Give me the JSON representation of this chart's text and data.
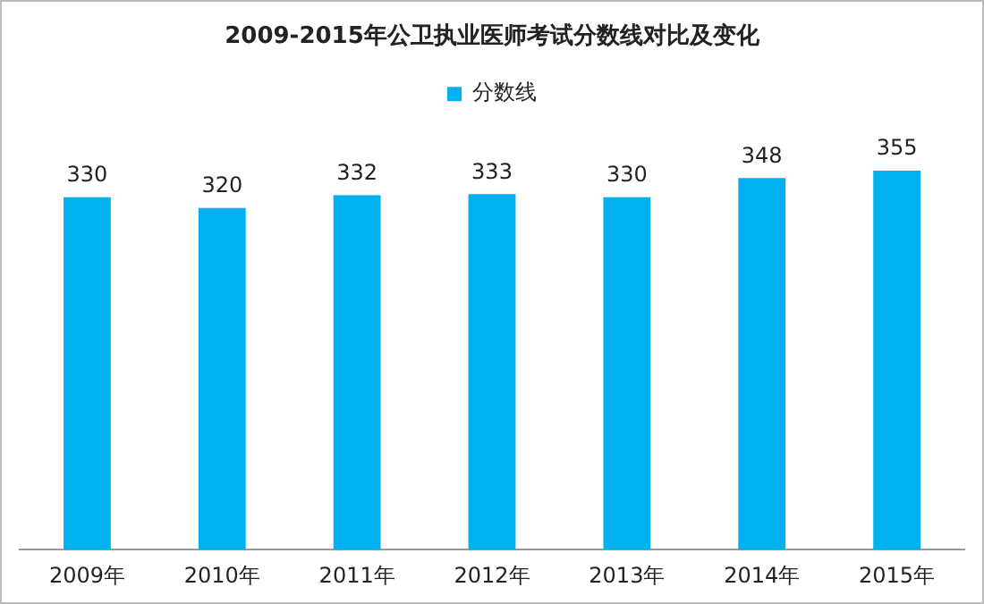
{
  "chart_data": {
    "type": "bar",
    "title": "2009-2015年公卫执业医师考试分数线对比及变化",
    "categories": [
      "2009年",
      "2010年",
      "2011年",
      "2012年",
      "2013年",
      "2014年",
      "2015年"
    ],
    "series": [
      {
        "name": "分数线",
        "color": "#00b0f0",
        "values": [
          330,
          320,
          332,
          333,
          330,
          348,
          355
        ]
      }
    ],
    "tick_labels": "x",
    "data_labels": true,
    "legend": "top",
    "grid": false
  }
}
